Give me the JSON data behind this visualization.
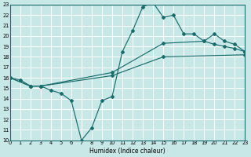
{
  "xlabel": "Humidex (Indice chaleur)",
  "xlim": [
    0,
    23
  ],
  "ylim": [
    10,
    23
  ],
  "xticks": [
    0,
    1,
    2,
    3,
    4,
    5,
    6,
    7,
    8,
    9,
    10,
    11,
    12,
    13,
    14,
    15,
    16,
    17,
    18,
    19,
    20,
    21,
    22,
    23
  ],
  "yticks": [
    10,
    11,
    12,
    13,
    14,
    15,
    16,
    17,
    18,
    19,
    20,
    21,
    22,
    23
  ],
  "bg_color": "#c8e8e8",
  "grid_color": "#ffffff",
  "line_color": "#1a6b6b",
  "lines": [
    {
      "x": [
        0,
        1,
        2,
        3,
        4,
        5,
        6,
        7,
        8,
        9,
        10,
        11,
        12,
        13,
        14,
        15,
        16,
        17,
        18,
        19,
        20,
        21,
        22,
        23
      ],
      "y": [
        16,
        15.8,
        15.2,
        15.2,
        14.8,
        14.5,
        13.8,
        10.0,
        11.2,
        13.8,
        14.2,
        18.5,
        20.5,
        22.8,
        23.2,
        21.8,
        22.0,
        20.2,
        20.2,
        19.5,
        19.2,
        19.0,
        18.8,
        18.5
      ]
    },
    {
      "x": [
        0,
        2,
        3,
        10,
        15,
        19,
        20,
        21,
        22,
        23
      ],
      "y": [
        16,
        15.2,
        15.2,
        16.5,
        19.3,
        19.5,
        20.2,
        19.5,
        19.2,
        18.5
      ]
    },
    {
      "x": [
        0,
        2,
        3,
        10,
        15,
        23
      ],
      "y": [
        16,
        15.2,
        15.2,
        16.2,
        18.0,
        18.2
      ]
    }
  ]
}
